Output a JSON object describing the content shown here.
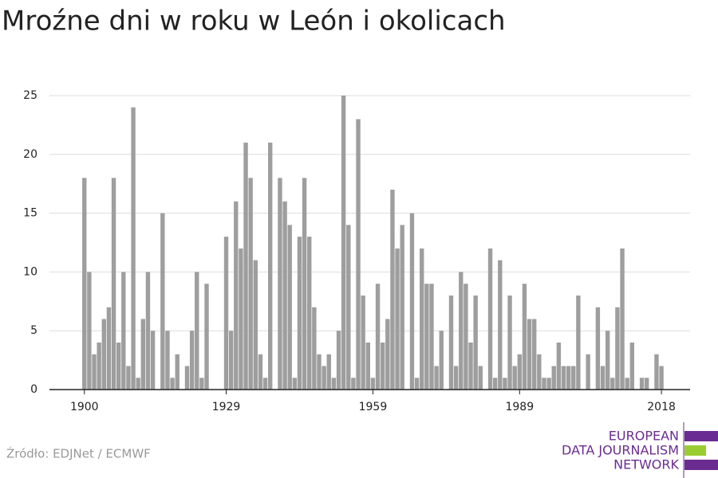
{
  "chart_data": {
    "type": "bar",
    "title": "Mroźne dni w roku w León i okolicach",
    "x": [
      1900,
      1901,
      1902,
      1903,
      1904,
      1905,
      1906,
      1907,
      1908,
      1909,
      1910,
      1911,
      1912,
      1913,
      1914,
      1915,
      1916,
      1917,
      1918,
      1919,
      1920,
      1921,
      1922,
      1923,
      1924,
      1925,
      1926,
      1927,
      1928,
      1929,
      1930,
      1931,
      1932,
      1933,
      1934,
      1935,
      1936,
      1937,
      1938,
      1939,
      1940,
      1941,
      1942,
      1943,
      1944,
      1945,
      1946,
      1947,
      1948,
      1949,
      1950,
      1951,
      1952,
      1953,
      1954,
      1955,
      1956,
      1957,
      1958,
      1959,
      1960,
      1961,
      1962,
      1963,
      1964,
      1965,
      1966,
      1967,
      1968,
      1969,
      1970,
      1971,
      1972,
      1973,
      1974,
      1975,
      1976,
      1977,
      1978,
      1979,
      1980,
      1981,
      1982,
      1983,
      1984,
      1985,
      1986,
      1987,
      1988,
      1989,
      1990,
      1991,
      1992,
      1993,
      1994,
      1995,
      1996,
      1997,
      1998,
      1999,
      2000,
      2001,
      2002,
      2003,
      2004,
      2005,
      2006,
      2007,
      2008,
      2009,
      2010,
      2011,
      2012,
      2013,
      2014,
      2015,
      2016,
      2017,
      2018
    ],
    "values": [
      18,
      10,
      3,
      4,
      6,
      7,
      18,
      4,
      10,
      2,
      24,
      1,
      6,
      10,
      5,
      0,
      15,
      5,
      1,
      3,
      0,
      2,
      5,
      10,
      1,
      9,
      0,
      0,
      0,
      13,
      5,
      16,
      12,
      21,
      18,
      11,
      3,
      1,
      21,
      0,
      18,
      16,
      14,
      1,
      13,
      18,
      13,
      7,
      3,
      2,
      3,
      1,
      5,
      25,
      14,
      1,
      23,
      8,
      4,
      1,
      9,
      4,
      6,
      17,
      12,
      14,
      0,
      15,
      1,
      12,
      9,
      9,
      2,
      5,
      0,
      8,
      2,
      10,
      9,
      4,
      8,
      2,
      0,
      12,
      1,
      11,
      1,
      8,
      2,
      3,
      9,
      6,
      6,
      3,
      1,
      1,
      2,
      4,
      2,
      2,
      2,
      8,
      0,
      3,
      0,
      7,
      2,
      5,
      1,
      7,
      12,
      1,
      4,
      0,
      1,
      1,
      0,
      3,
      2
    ],
    "color": "#9e9e9e",
    "xlim": [
      1893.3,
      2024.3
    ],
    "xticks": [
      1900,
      1929,
      1959,
      1989,
      2018
    ],
    "ylim": [
      0,
      25
    ],
    "yticks": [
      0,
      5,
      10,
      15,
      20,
      25
    ],
    "grid": true
  },
  "source": "Źródło: EDJNet / ECMWF",
  "logo": [
    "EUROPEAN",
    "DATA JOURNALISM",
    "NETWORK"
  ]
}
